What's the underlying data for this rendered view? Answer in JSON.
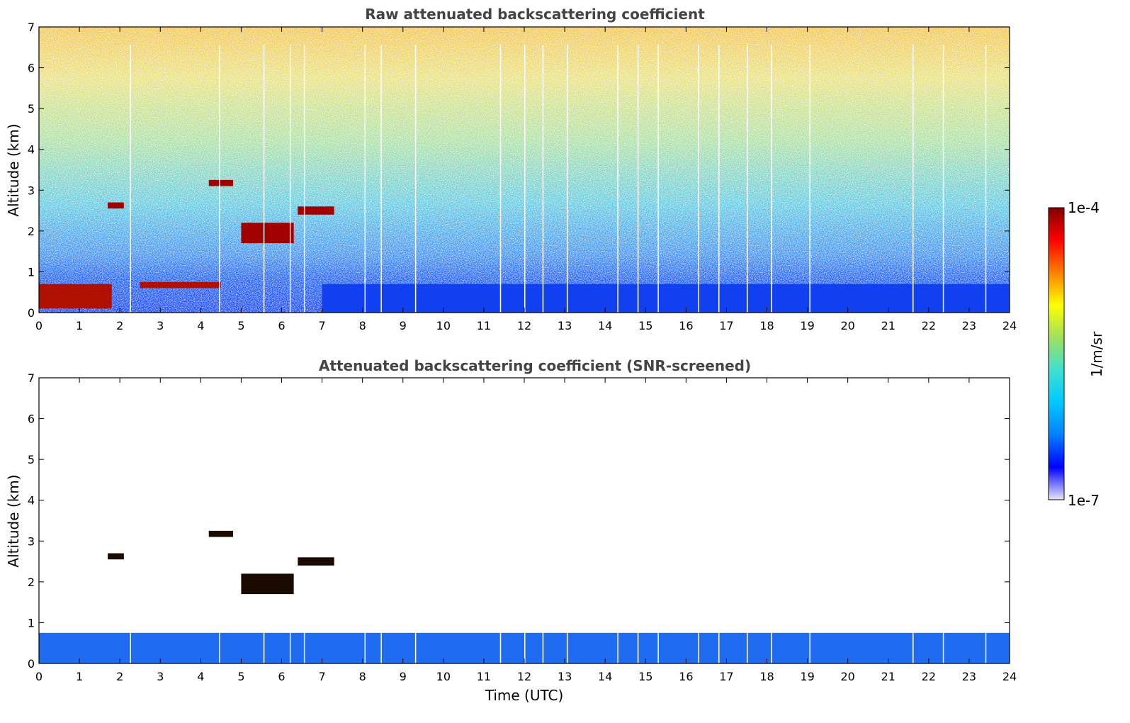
{
  "chart_data": [
    {
      "type": "heatmap",
      "title": "Raw attenuated backscattering coefficient",
      "xlabel": "",
      "ylabel": "Altitude (km)",
      "xlim": [
        0,
        24
      ],
      "ylim": [
        0,
        7
      ],
      "x_ticks": [
        0,
        1,
        2,
        3,
        4,
        5,
        6,
        7,
        8,
        9,
        10,
        11,
        12,
        13,
        14,
        15,
        16,
        17,
        18,
        19,
        20,
        21,
        22,
        23,
        24
      ],
      "y_ticks": [
        0,
        1,
        2,
        3,
        4,
        5,
        6,
        7
      ],
      "features": [
        {
          "kind": "aerosol-layer",
          "x": [
            0,
            1.8
          ],
          "y": [
            0.1,
            0.7
          ],
          "level": "high"
        },
        {
          "kind": "aerosol-layer",
          "x": [
            2.5,
            4.5
          ],
          "y": [
            0.6,
            0.75
          ],
          "level": "high"
        },
        {
          "kind": "cloud",
          "x": [
            1.7,
            2.1
          ],
          "y": [
            2.55,
            2.7
          ],
          "level": "high"
        },
        {
          "kind": "cloud",
          "x": [
            4.2,
            4.8
          ],
          "y": [
            3.1,
            3.25
          ],
          "level": "high"
        },
        {
          "kind": "cloud",
          "x": [
            5.0,
            6.3
          ],
          "y": [
            1.7,
            2.2
          ],
          "level": "high"
        },
        {
          "kind": "cloud",
          "x": [
            6.4,
            7.3
          ],
          "y": [
            2.4,
            2.6
          ],
          "level": "high"
        },
        {
          "kind": "boundary-layer",
          "x": [
            7,
            24
          ],
          "y": [
            0,
            0.7
          ],
          "level": "low"
        }
      ],
      "colorbar": {
        "min_label": "1e-7",
        "max_label": "1e-4",
        "units": "1/m/sr"
      }
    },
    {
      "type": "heatmap",
      "title": "Attenuated backscattering coefficient (SNR-screened)",
      "xlabel": "Time (UTC)",
      "ylabel": "Altitude (km)",
      "xlim": [
        0,
        24
      ],
      "ylim": [
        0,
        7
      ],
      "x_ticks": [
        0,
        1,
        2,
        3,
        4,
        5,
        6,
        7,
        8,
        9,
        10,
        11,
        12,
        13,
        14,
        15,
        16,
        17,
        18,
        19,
        20,
        21,
        22,
        23,
        24
      ],
      "y_ticks": [
        0,
        1,
        2,
        3,
        4,
        5,
        6,
        7
      ],
      "features": [
        {
          "kind": "boundary-layer",
          "x": [
            0,
            24
          ],
          "y": [
            0,
            0.75
          ],
          "level": "low"
        },
        {
          "kind": "cloud",
          "x": [
            1.7,
            2.1
          ],
          "y": [
            2.55,
            2.7
          ],
          "level": "high"
        },
        {
          "kind": "cloud",
          "x": [
            4.2,
            4.8
          ],
          "y": [
            3.1,
            3.25
          ],
          "level": "high"
        },
        {
          "kind": "cloud",
          "x": [
            5.0,
            6.3
          ],
          "y": [
            1.7,
            2.2
          ],
          "level": "high"
        },
        {
          "kind": "cloud",
          "x": [
            6.4,
            7.3
          ],
          "y": [
            2.4,
            2.6
          ],
          "level": "high"
        }
      ]
    }
  ],
  "colorbar": {
    "max_label": "1e-4",
    "min_label": "1e-7",
    "units_label": "1/m/sr",
    "colors": [
      "#e6e6fa",
      "#0000ff",
      "#0080ff",
      "#00c8ff",
      "#40e0d0",
      "#a0e060",
      "#ffff00",
      "#ff8000",
      "#ff0000",
      "#800000"
    ]
  }
}
